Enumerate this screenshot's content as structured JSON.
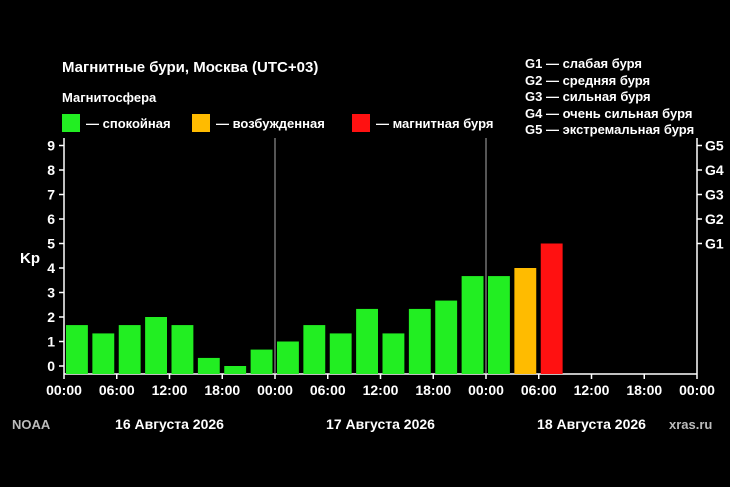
{
  "title": "Магнитные бури, Москва (UTC+03)",
  "legend": {
    "title": "Магнитосфера",
    "items": [
      {
        "label": "— спокойная",
        "color": "#22ee22"
      },
      {
        "label": "— возбужденная",
        "color": "#ffbb00"
      },
      {
        "label": "— магнитная буря",
        "color": "#ff1111"
      }
    ]
  },
  "g_scale": [
    "G1 — слабая буря",
    "G2 — средняя буря",
    "G3 — сильная буря",
    "G4 — очень сильная буря",
    "G5 — экстремальная буря"
  ],
  "watermark_left": "NOAA",
  "watermark_right": "xras.ru",
  "chart_data": {
    "type": "bar",
    "ylabel": "Kp",
    "ylim": [
      0,
      9.4
    ],
    "y_ticks": [
      "0",
      "1",
      "2",
      "3",
      "4",
      "5",
      "6",
      "7",
      "8",
      "9"
    ],
    "right_ticks": [
      {
        "value": 5,
        "label": "G1"
      },
      {
        "value": 6,
        "label": "G2"
      },
      {
        "value": 7,
        "label": "G3"
      },
      {
        "value": 8,
        "label": "G4"
      },
      {
        "value": 9,
        "label": "G5"
      }
    ],
    "x_ticks": [
      "00:00",
      "06:00",
      "12:00",
      "18:00",
      "00:00",
      "06:00",
      "12:00",
      "18:00",
      "00:00",
      "06:00",
      "12:00",
      "18:00",
      "00:00"
    ],
    "days": [
      "16 Августа 2026",
      "17 Августа 2026",
      "18 Августа 2026"
    ],
    "slots": 24,
    "values": [
      1.67,
      1.33,
      1.67,
      2.0,
      1.67,
      0.33,
      0.0,
      0.67,
      1.0,
      1.67,
      1.33,
      2.33,
      1.33,
      2.33,
      2.67,
      3.67,
      3.67,
      4.0,
      5.0
    ],
    "colors": [
      "#22ee22",
      "#22ee22",
      "#22ee22",
      "#22ee22",
      "#22ee22",
      "#22ee22",
      "#22ee22",
      "#22ee22",
      "#22ee22",
      "#22ee22",
      "#22ee22",
      "#22ee22",
      "#22ee22",
      "#22ee22",
      "#22ee22",
      "#22ee22",
      "#22ee22",
      "#ffbb00",
      "#ff1111"
    ],
    "grid": "day-separators"
  }
}
